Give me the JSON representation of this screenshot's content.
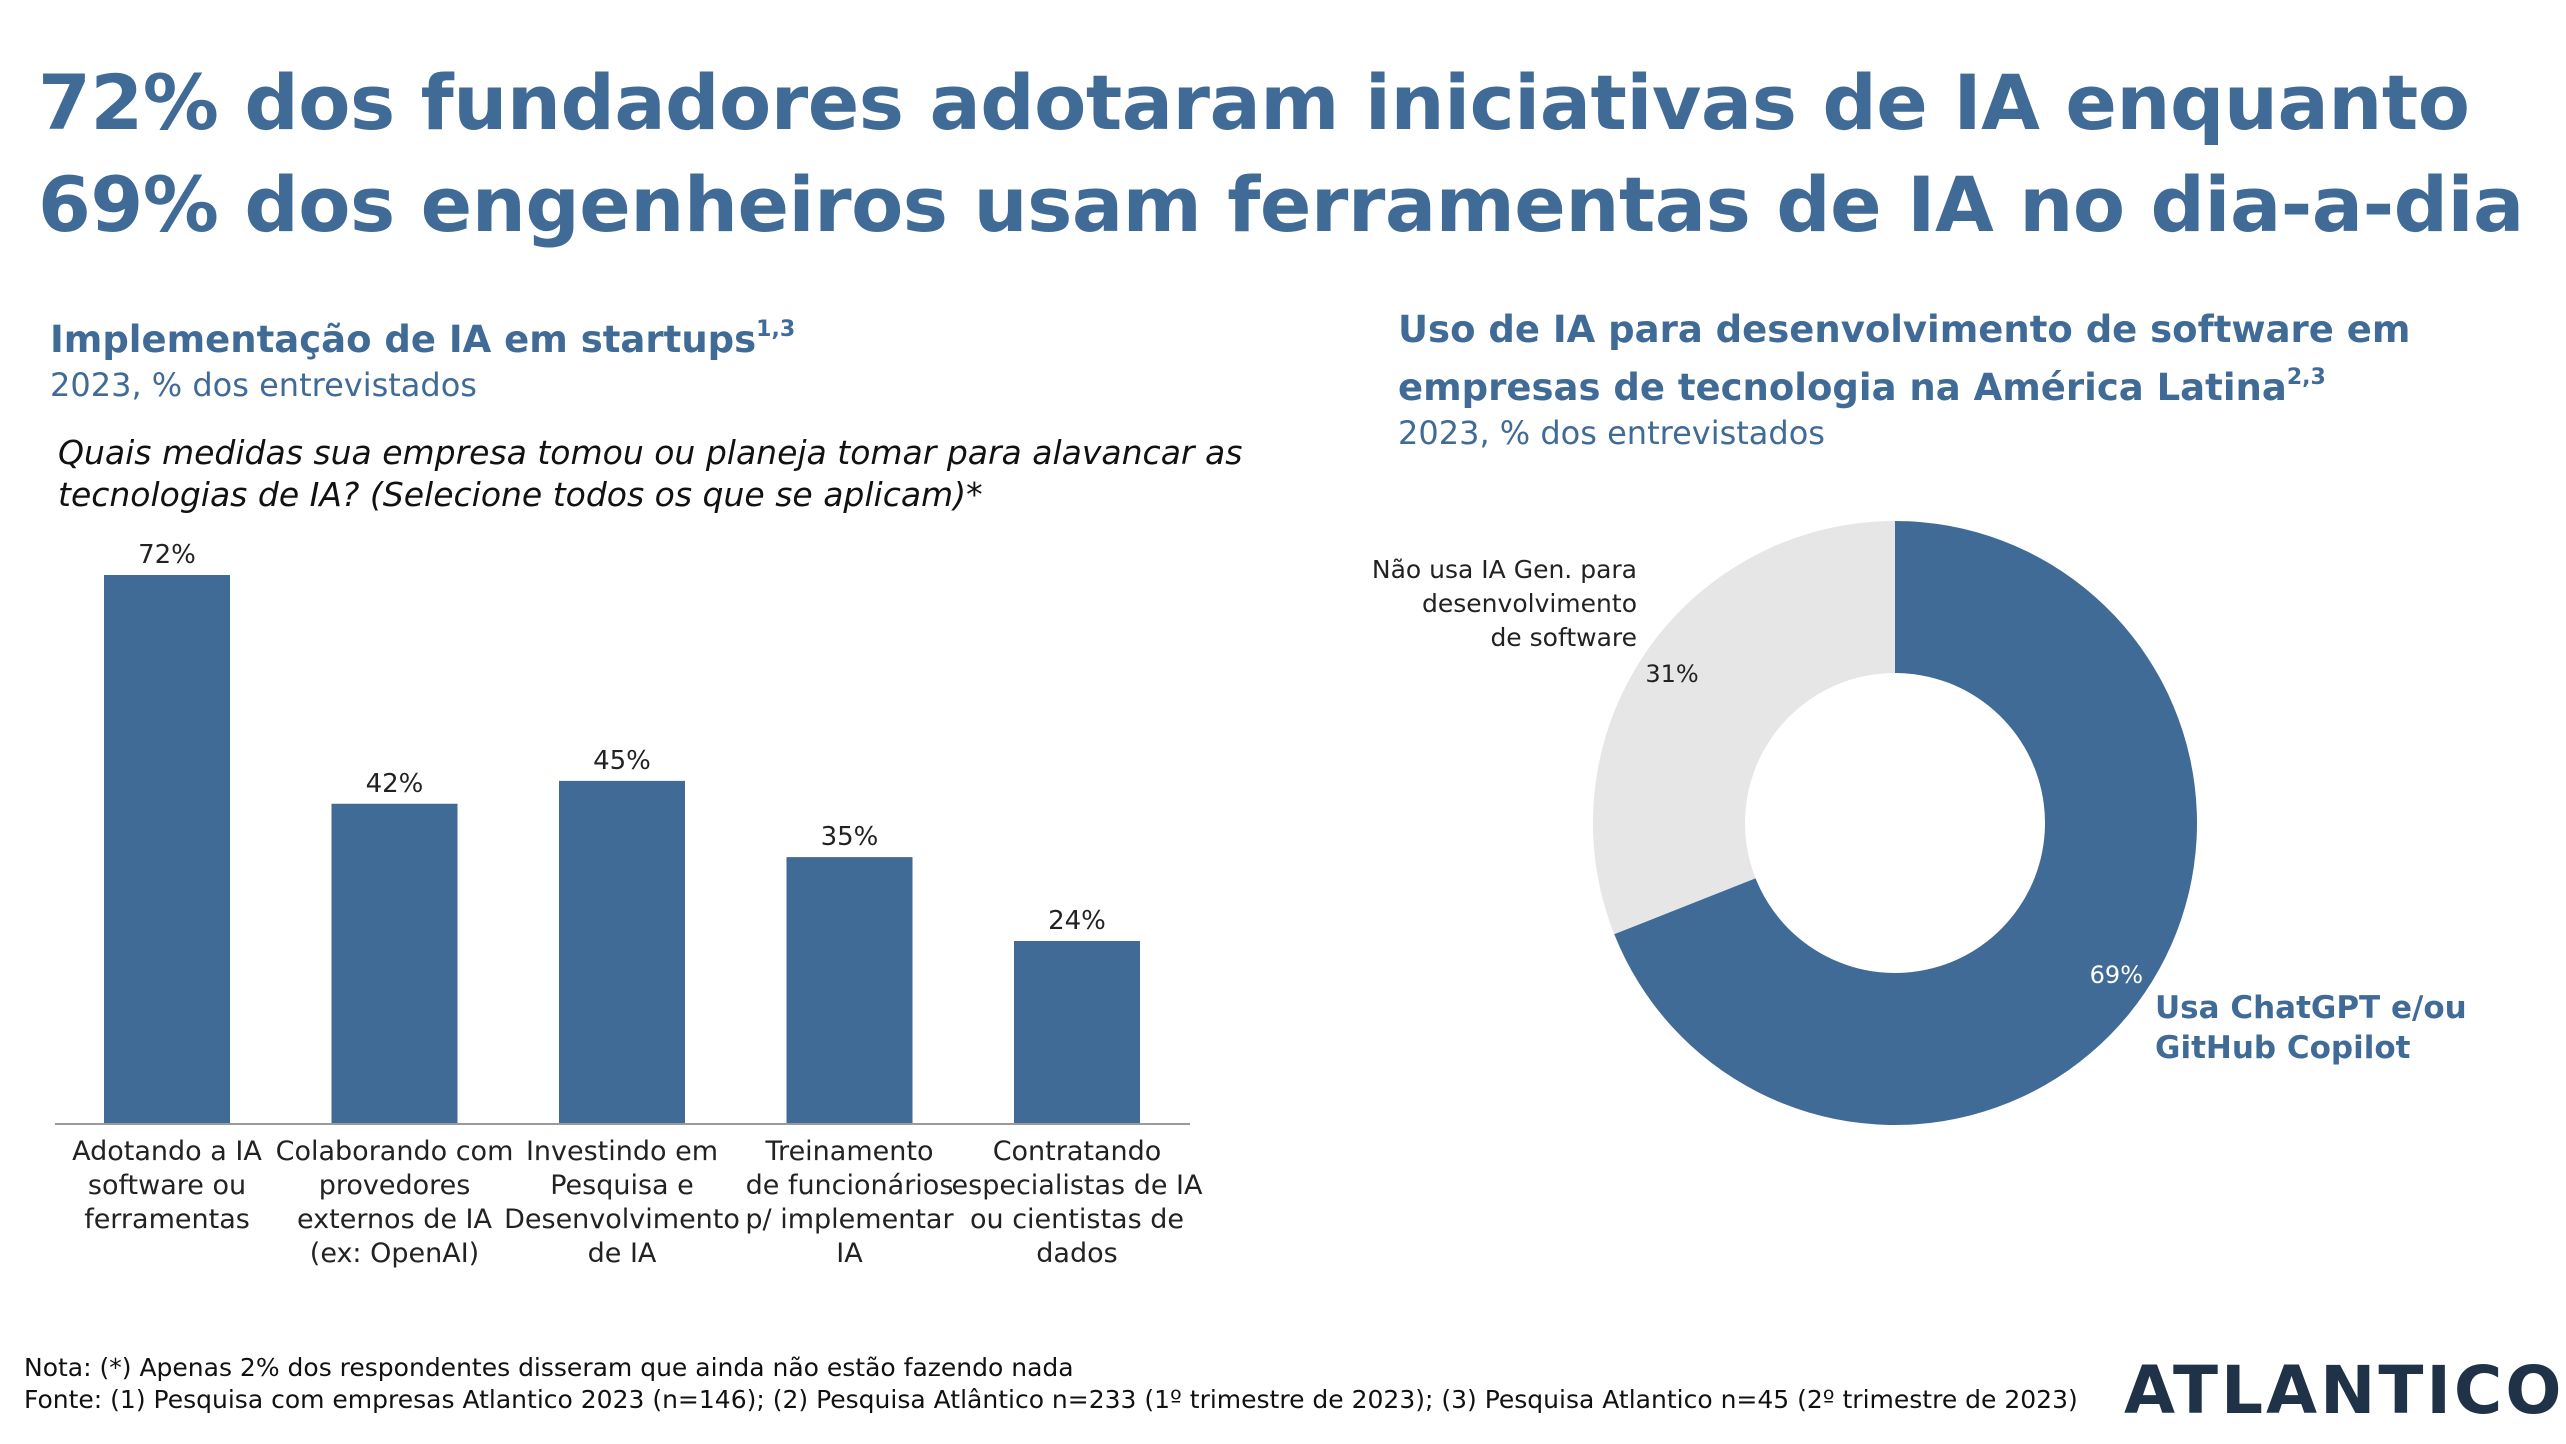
{
  "headline": {
    "line1": "72% dos fundadores adotaram iniciativas de IA enquanto",
    "line2": "69% dos engenheiros usam ferramentas de IA no dia-a-dia"
  },
  "left": {
    "title": "Implementação de IA em startups",
    "title_sup": "1,3",
    "subtitle": "2023, % dos entrevistados",
    "question_line1": "Quais medidas sua empresa tomou ou planeja tomar para alavancar as",
    "question_line2": "tecnologias de IA? (Selecione todos os que se aplicam)*"
  },
  "right": {
    "title_line1": "Uso de IA para desenvolvimento de software em",
    "title_line2": "empresas de tecnologia na América Latina",
    "title_sup": "2,3",
    "subtitle": "2023, % dos entrevistados"
  },
  "colors": {
    "accent": "#416b97",
    "neutral": "#e6e6e6",
    "logo": "#1f3247"
  },
  "chart_data": [
    {
      "type": "bar",
      "categories": [
        [
          "Adotando a IA",
          "software ou",
          "ferramentas"
        ],
        [
          "Colaborando com",
          "provedores",
          "externos de IA",
          "(ex: OpenAI)"
        ],
        [
          "Investindo em",
          "Pesquisa e",
          "Desenvolvimento",
          "de IA"
        ],
        [
          "Treinamento",
          "de funcionários",
          "p/ implementar",
          "IA"
        ],
        [
          "Contratando",
          "especialistas de IA",
          "ou cientistas de",
          "dados"
        ]
      ],
      "values": [
        72,
        42,
        45,
        35,
        24
      ],
      "value_labels": [
        "72%",
        "42%",
        "45%",
        "35%",
        "24%"
      ],
      "ylim": [
        0,
        72
      ],
      "grid": false
    },
    {
      "type": "pie",
      "donut": true,
      "slices": [
        {
          "label_lines": [
            "Usa ChatGPT e/ou",
            "GitHub Copilot"
          ],
          "value": 69,
          "value_label": "69%",
          "color": "#416b97"
        },
        {
          "label_lines": [
            "Não usa IA Gen. para",
            "desenvolvimento",
            "de software"
          ],
          "value": 31,
          "value_label": "31%",
          "color": "#e6e6e6"
        }
      ]
    }
  ],
  "footer": {
    "note": "Nota: (*) Apenas 2% dos respondentes disseram que ainda não estão fazendo nada",
    "source": "Fonte: (1) Pesquisa com empresas Atlantico 2023 (n=146); (2) Pesquisa Atlântico n=233 (1º trimestre de 2023); (3) Pesquisa Atlantico n=45 (2º trimestre de 2023)"
  },
  "logo": "ATLANTICO"
}
